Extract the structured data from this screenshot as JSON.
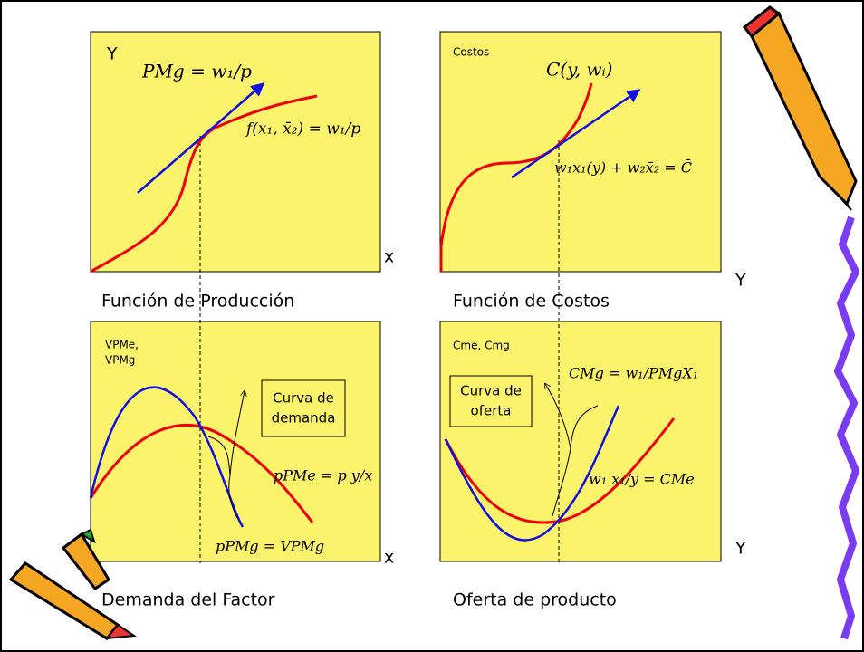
{
  "panels": [
    {
      "caption": "Función de Producción",
      "y_label": "Y",
      "x_label": "x",
      "formulas": [
        "PMg = w₁/p",
        "f(x₁, x̄₂) = w₁/p"
      ]
    },
    {
      "caption": "Función de Costos",
      "y_label": "Costos",
      "x_label": "Y",
      "formulas": [
        "C(y, wᵢ)",
        "w₁x₁(y) + w₂x̄₂ = C̄"
      ]
    },
    {
      "caption": "Demanda del Factor",
      "y_label": [
        "VPMe,",
        "VPMg"
      ],
      "x_label": "x",
      "box": [
        "Curva de",
        "demanda"
      ],
      "formulas": [
        "pPMe = p y/x",
        "pPMg = VPMg"
      ]
    },
    {
      "caption": "Oferta de producto",
      "y_label": "Cme, Cmg",
      "x_label": "Y",
      "box": [
        "Curva de",
        "oferta"
      ],
      "formulas": [
        "CMg = w₁/PMgX₁",
        "w₁ x₁/y = CMe"
      ]
    }
  ]
}
